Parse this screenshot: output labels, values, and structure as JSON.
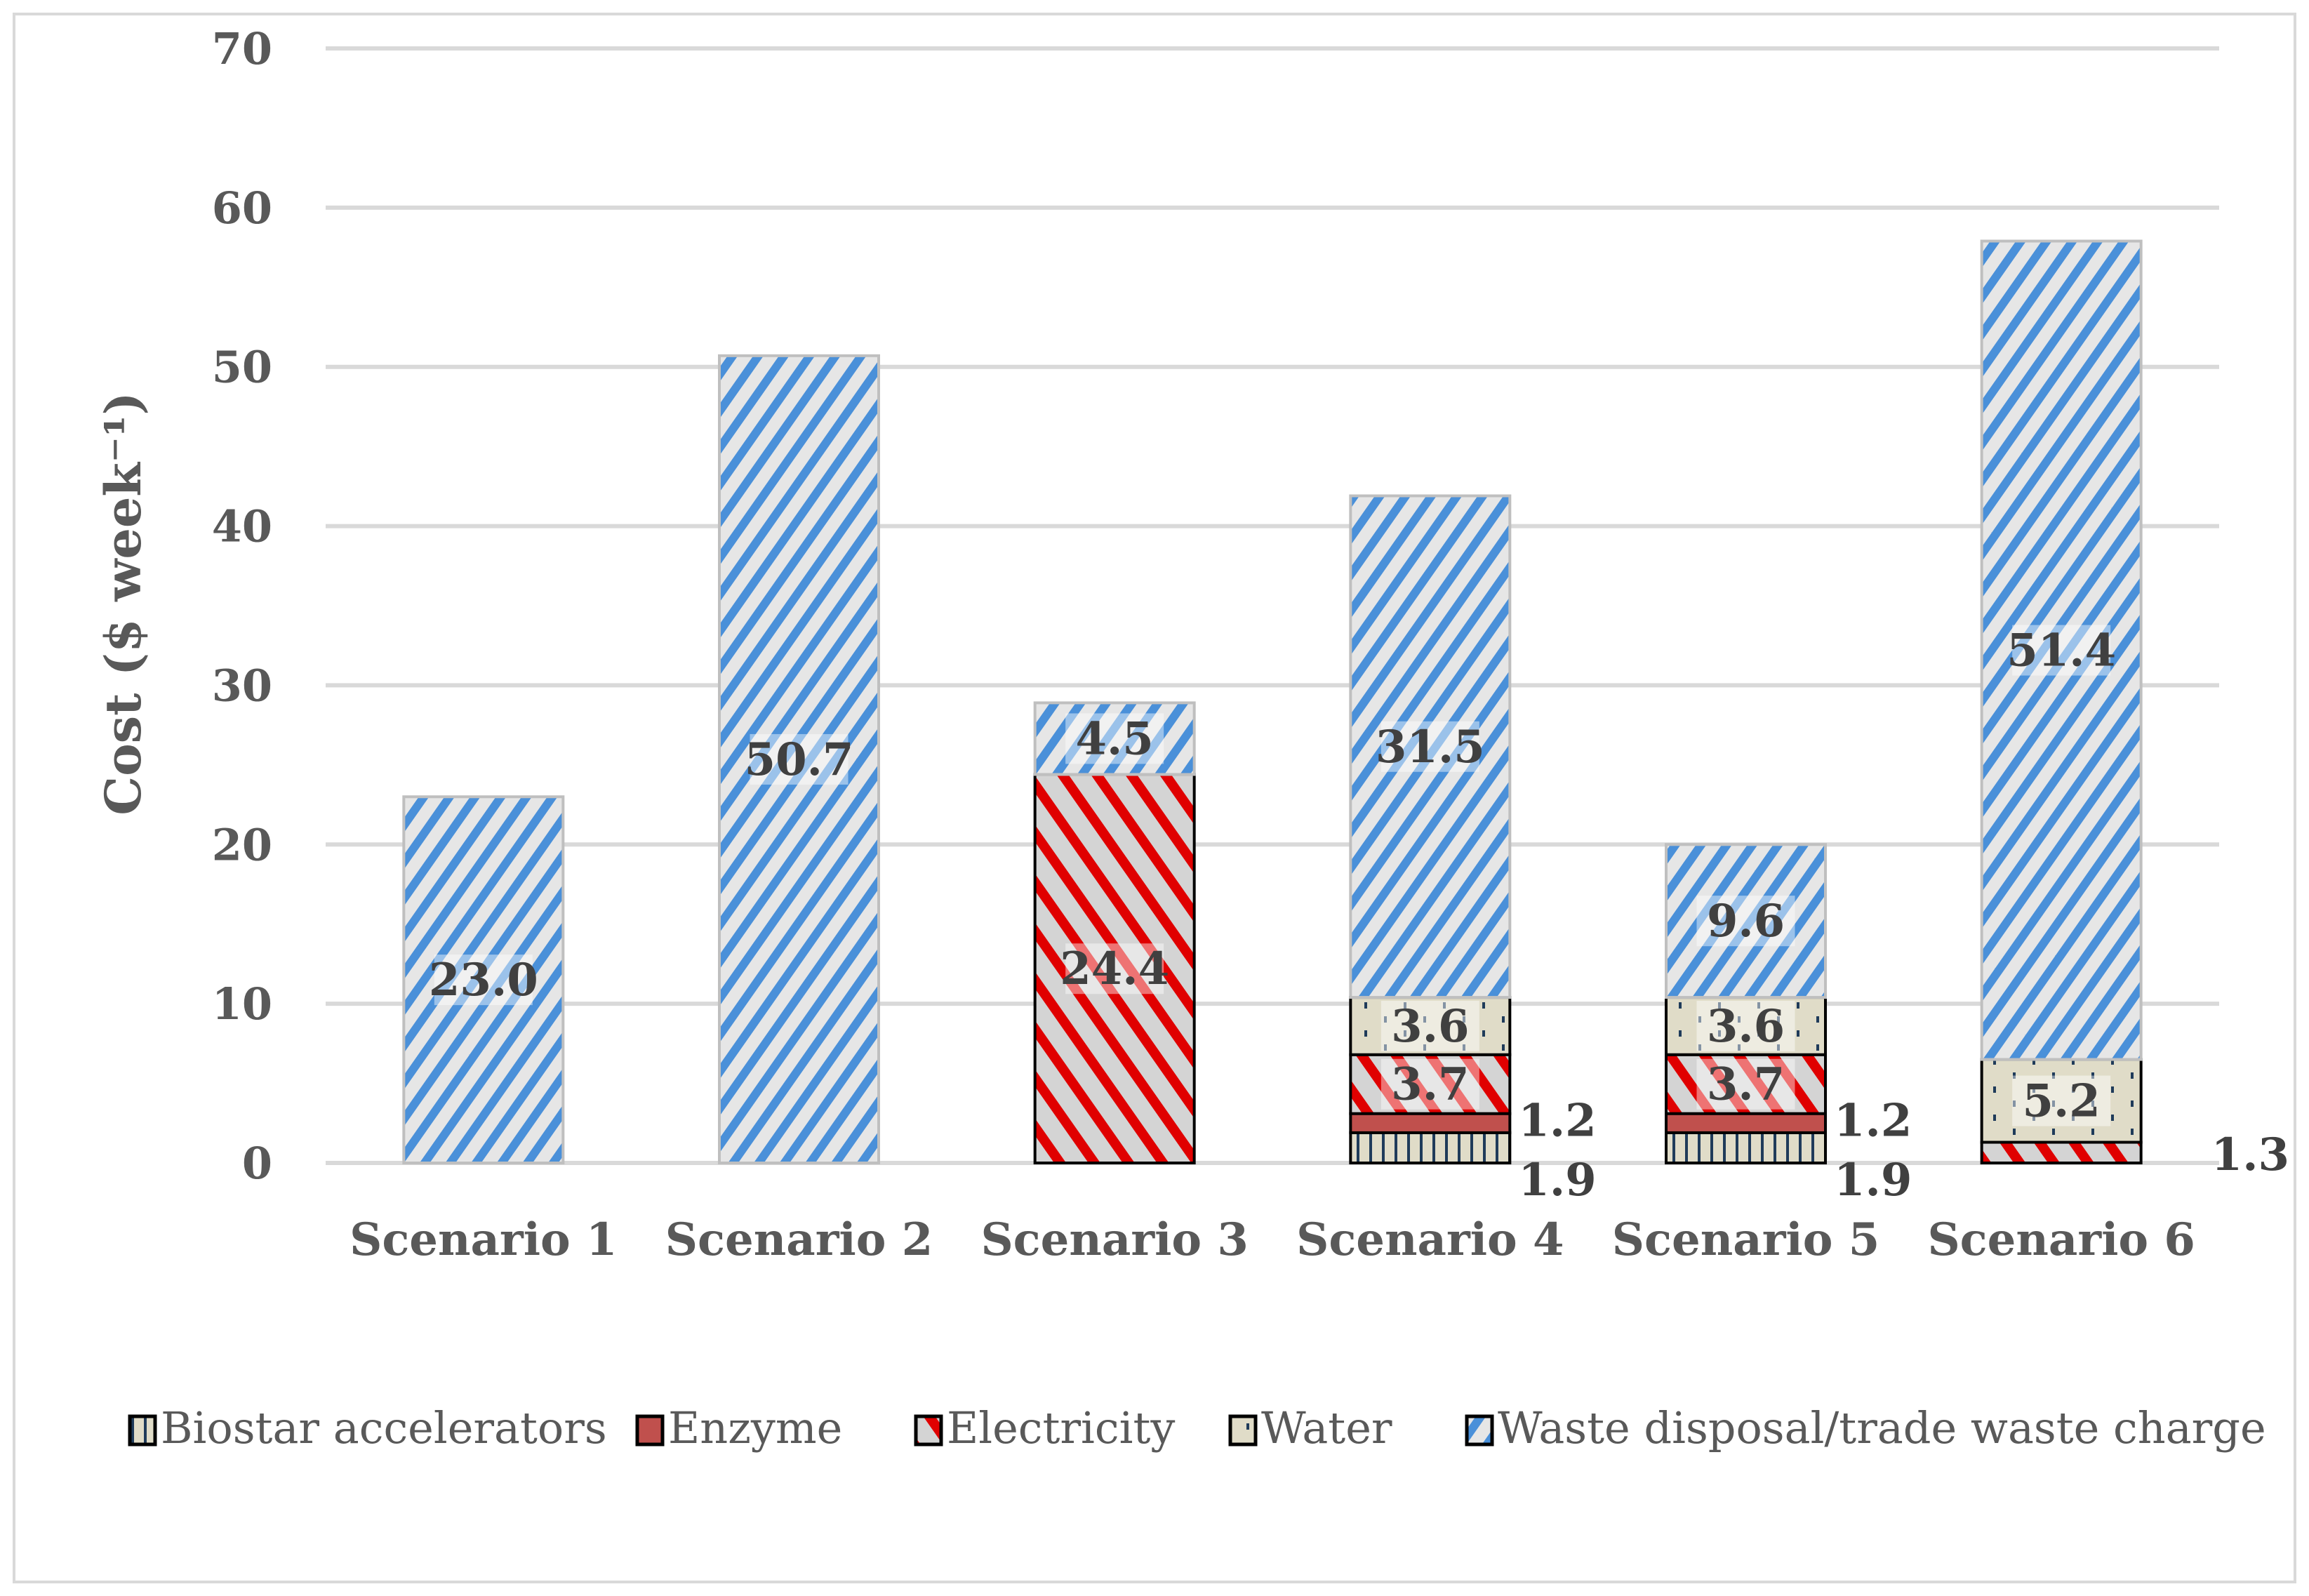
{
  "chart_data": {
    "type": "bar",
    "stacked": true,
    "title": "",
    "xlabel": "",
    "ylabel": "Cost ($ week⁻¹)",
    "ylim": [
      0,
      70
    ],
    "yticks": [
      0,
      10,
      20,
      30,
      40,
      50,
      60,
      70
    ],
    "grid": true,
    "legend_position": "bottom",
    "categories": [
      "Scenario 1",
      "Scenario 2",
      "Scenario 3",
      "Scenario 4",
      "Scenario 5",
      "Scenario 6"
    ],
    "series": [
      {
        "name": "Biostar accelerators",
        "color": "#e0dcc8",
        "pattern": "vertical-lines",
        "values": [
          0,
          0,
          0,
          1.9,
          1.9,
          0
        ]
      },
      {
        "name": "Enzyme",
        "color": "#c0504d",
        "pattern": "solid",
        "values": [
          0,
          0,
          0,
          1.2,
          1.2,
          0
        ]
      },
      {
        "name": "Electricity",
        "color": "#e00000",
        "pattern": "diagonal-down",
        "values": [
          0,
          0,
          24.4,
          3.7,
          3.7,
          1.3
        ]
      },
      {
        "name": "Water",
        "color": "#e0dcc8",
        "pattern": "dots",
        "values": [
          0,
          0,
          0,
          3.6,
          3.6,
          5.2
        ]
      },
      {
        "name": "Waste disposal/trade waste charge",
        "color": "#4a90d9",
        "pattern": "diagonal-up",
        "values": [
          23.0,
          50.7,
          4.5,
          31.5,
          9.6,
          51.4
        ]
      }
    ],
    "data_labels": [
      [
        "",
        "",
        "",
        "",
        "23.0"
      ],
      [
        "",
        "",
        "",
        "",
        "50.7"
      ],
      [
        "",
        "",
        "24.4",
        "",
        "4.5"
      ],
      [
        "1.9",
        "1.2",
        "3.7",
        "3.6",
        "31.5"
      ],
      [
        "1.9",
        "1.2",
        "3.7",
        "3.6",
        "9.6"
      ],
      [
        "",
        "",
        "1.3",
        "5.2",
        "51.4"
      ]
    ]
  }
}
